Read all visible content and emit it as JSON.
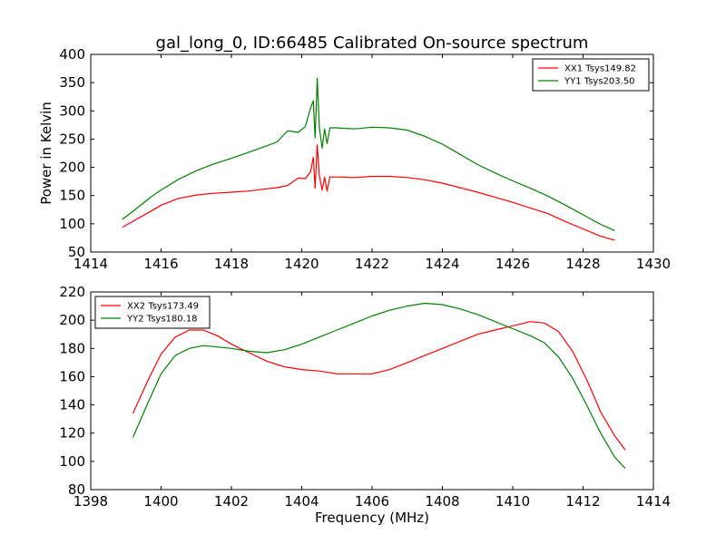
{
  "figure": {
    "title": "gal_long_0, ID:66485 Calibrated On-source spectrum"
  },
  "chart_data": [
    {
      "type": "line",
      "title": "gal_long_0, ID:66485 Calibrated On-source spectrum",
      "xlabel": "",
      "ylabel": "Power in Kelvin",
      "xlim": [
        1414,
        1430
      ],
      "ylim": [
        50,
        400
      ],
      "xticks": [
        1414,
        1416,
        1418,
        1420,
        1422,
        1424,
        1426,
        1428,
        1430
      ],
      "yticks": [
        50,
        100,
        150,
        200,
        250,
        300,
        350,
        400
      ],
      "grid": false,
      "legend_position": "top-right",
      "series": [
        {
          "name": "XX1 Tsys149.82",
          "color": "#ff0000",
          "x": [
            1414.9,
            1415.3,
            1415.7,
            1416.0,
            1416.5,
            1417.0,
            1417.5,
            1418.0,
            1418.5,
            1419.0,
            1419.3,
            1419.6,
            1419.9,
            1420.1,
            1420.25,
            1420.33,
            1420.38,
            1420.44,
            1420.5,
            1420.58,
            1420.65,
            1420.72,
            1420.8,
            1421.0,
            1421.5,
            1422.0,
            1422.5,
            1423.0,
            1423.5,
            1424.0,
            1424.5,
            1425.0,
            1425.5,
            1426.0,
            1426.5,
            1427.0,
            1427.5,
            1428.0,
            1428.5,
            1428.9
          ],
          "values": [
            94,
            108,
            122,
            133,
            145,
            151,
            154,
            156,
            158,
            162,
            164,
            168,
            181,
            180,
            192,
            218,
            163,
            240,
            185,
            160,
            183,
            158,
            183,
            183,
            182,
            184,
            184,
            182,
            178,
            172,
            164,
            156,
            147,
            138,
            128,
            118,
            104,
            91,
            78,
            71
          ]
        },
        {
          "name": "YY1 Tsys203.50",
          "color": "#008000",
          "x": [
            1414.9,
            1415.3,
            1415.7,
            1416.0,
            1416.5,
            1417.0,
            1417.5,
            1418.0,
            1418.5,
            1419.0,
            1419.3,
            1419.6,
            1419.9,
            1420.1,
            1420.25,
            1420.33,
            1420.38,
            1420.44,
            1420.5,
            1420.58,
            1420.65,
            1420.72,
            1420.8,
            1421.0,
            1421.5,
            1422.0,
            1422.5,
            1423.0,
            1423.5,
            1424.0,
            1424.5,
            1425.0,
            1425.5,
            1426.0,
            1426.5,
            1427.0,
            1427.5,
            1428.0,
            1428.5,
            1428.9
          ],
          "values": [
            108,
            127,
            147,
            160,
            179,
            194,
            206,
            216,
            227,
            238,
            245,
            265,
            262,
            272,
            305,
            318,
            252,
            358,
            270,
            234,
            268,
            242,
            270,
            270,
            268,
            271,
            270,
            266,
            255,
            241,
            223,
            205,
            190,
            176,
            163,
            149,
            133,
            116,
            99,
            88
          ]
        }
      ]
    },
    {
      "type": "line",
      "title": "",
      "xlabel": "Frequency (MHz)",
      "ylabel": "",
      "xlim": [
        1398,
        1414
      ],
      "ylim": [
        80,
        220
      ],
      "xticks": [
        1398,
        1400,
        1402,
        1404,
        1406,
        1408,
        1410,
        1412,
        1414
      ],
      "yticks": [
        80,
        100,
        120,
        140,
        160,
        180,
        200,
        220
      ],
      "grid": false,
      "legend_position": "top-left",
      "series": [
        {
          "name": "XX2 Tsys173.49",
          "color": "#ff0000",
          "x": [
            1399.2,
            1399.6,
            1400.0,
            1400.4,
            1400.8,
            1401.2,
            1401.6,
            1402.0,
            1402.5,
            1403.0,
            1403.5,
            1404.0,
            1404.5,
            1405.0,
            1405.5,
            1406.0,
            1406.5,
            1407.0,
            1407.5,
            1408.0,
            1408.5,
            1409.0,
            1409.5,
            1410.0,
            1410.5,
            1410.9,
            1411.3,
            1411.7,
            1412.1,
            1412.5,
            1412.9,
            1413.2
          ],
          "values": [
            134,
            156,
            176,
            188,
            193,
            193,
            189,
            183,
            177,
            171,
            167,
            165,
            164,
            162,
            162,
            162,
            165,
            170,
            175,
            180,
            185,
            190,
            193,
            196,
            199,
            198,
            192,
            178,
            158,
            135,
            118,
            108
          ]
        },
        {
          "name": "YY2 Tsys180.18",
          "color": "#008000",
          "x": [
            1399.2,
            1399.6,
            1400.0,
            1400.4,
            1400.8,
            1401.2,
            1401.6,
            1402.0,
            1402.5,
            1403.0,
            1403.5,
            1404.0,
            1404.5,
            1405.0,
            1405.5,
            1406.0,
            1406.5,
            1407.0,
            1407.5,
            1408.0,
            1408.5,
            1409.0,
            1409.5,
            1410.0,
            1410.5,
            1410.9,
            1411.3,
            1411.7,
            1412.1,
            1412.5,
            1412.9,
            1413.2
          ],
          "values": [
            117,
            140,
            162,
            175,
            180,
            182,
            181,
            180,
            178,
            177,
            179,
            183,
            188,
            193,
            198,
            203,
            207,
            210,
            212,
            211,
            208,
            204,
            199,
            194,
            189,
            184,
            174,
            159,
            140,
            120,
            103,
            95
          ]
        }
      ]
    }
  ]
}
